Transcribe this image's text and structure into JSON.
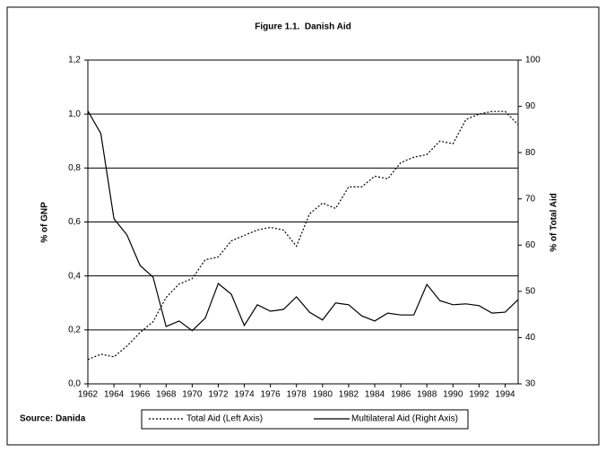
{
  "chart_data": {
    "type": "line",
    "title": "Figure 1.1.  Danish Aid",
    "source": "Source: Danida",
    "y_label": "% of GNP",
    "y2_label": "% of Total Aid",
    "grid": true,
    "legend": "bottom",
    "x": [
      1962,
      1963,
      1964,
      1965,
      1966,
      1967,
      1968,
      1969,
      1970,
      1971,
      1972,
      1973,
      1974,
      1975,
      1976,
      1977,
      1978,
      1979,
      1980,
      1981,
      1982,
      1983,
      1984,
      1985,
      1986,
      1987,
      1988,
      1989,
      1990,
      1991,
      1992,
      1993,
      1994,
      1995
    ],
    "xlim": [
      1962,
      1995
    ],
    "xticks": [
      1962,
      1964,
      1966,
      1968,
      1970,
      1972,
      1974,
      1976,
      1978,
      1980,
      1982,
      1984,
      1986,
      1988,
      1990,
      1992,
      1994
    ],
    "ylim": [
      0,
      1.2
    ],
    "yticks": [
      {
        "value": 0,
        "label": "0,0"
      },
      {
        "value": 0.2,
        "label": "0,2"
      },
      {
        "value": 0.4,
        "label": "0,4"
      },
      {
        "value": 0.6,
        "label": "0,6"
      },
      {
        "value": 0.8,
        "label": "0,8"
      },
      {
        "value": 1.0,
        "label": "1,0"
      },
      {
        "value": 1.2,
        "label": "1,2"
      }
    ],
    "y2lim": [
      30,
      100
    ],
    "y2ticks": [
      30,
      40,
      50,
      60,
      70,
      80,
      90,
      100
    ],
    "series": [
      {
        "name": "Total Aid (Left Axis)",
        "color": "#000000",
        "dash": true,
        "values": [
          0.09,
          0.11,
          0.1,
          0.14,
          0.19,
          0.23,
          0.32,
          0.37,
          0.39,
          0.46,
          0.47,
          0.53,
          0.55,
          0.57,
          0.58,
          0.57,
          0.51,
          0.63,
          0.67,
          0.65,
          0.73,
          0.73,
          0.77,
          0.76,
          0.82,
          0.84,
          0.85,
          0.9,
          0.89,
          0.98,
          1.0,
          1.01,
          1.01,
          0.96
        ]
      },
      {
        "name": "Multilateral Aid (Right Axis)",
        "color": "#000000",
        "dash": false,
        "axis": "y2",
        "values": [
          89,
          84.1,
          65.7,
          62.2,
          55.6,
          53.1,
          42.4,
          43.6,
          41.5,
          44.2,
          51.7,
          49.4,
          42.6,
          47.1,
          45.7,
          46.1,
          48.8,
          45.5,
          43.8,
          47.5,
          47.1,
          44.7,
          43.6,
          45.3,
          44.9,
          44.9,
          51.5,
          48,
          47.1,
          47.3,
          46.9,
          45.3,
          45.5,
          48.2
        ]
      }
    ]
  }
}
